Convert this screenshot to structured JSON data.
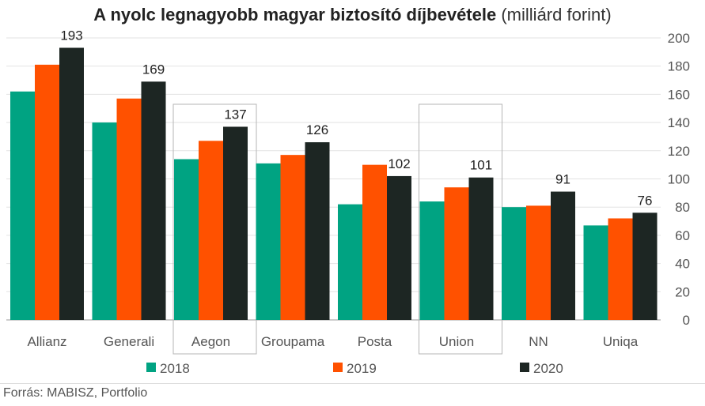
{
  "title_bold": "A nyolc legnagyobb magyar biztosító díjbevétele",
  "title_unit": "(milliárd forint)",
  "source": "Forrás:  MABISZ, Portfolio",
  "colors": {
    "2018": "#00a382",
    "2019": "#ff5100",
    "2020": "#1d2623"
  },
  "chart_data": {
    "type": "bar",
    "categories": [
      "Allianz",
      "Generali",
      "Aegon",
      "Groupama",
      "Posta",
      "Union",
      "NN",
      "Uniqa"
    ],
    "highlighted": [
      "Aegon",
      "Union"
    ],
    "series": [
      {
        "name": "2018",
        "values": [
          162,
          140,
          114,
          111,
          82,
          84,
          80,
          67
        ]
      },
      {
        "name": "2019",
        "values": [
          181,
          157,
          127,
          117,
          110,
          94,
          81,
          72
        ]
      },
      {
        "name": "2020",
        "values": [
          193,
          169,
          137,
          126,
          102,
          101,
          91,
          76
        ]
      }
    ],
    "data_labels": [
      "193",
      "169",
      "137",
      "126",
      "102",
      "101",
      "91",
      "76"
    ],
    "yticks": [
      "0",
      "20",
      "40",
      "60",
      "80",
      "100",
      "120",
      "140",
      "160",
      "180",
      "200"
    ],
    "ylim": [
      0,
      200
    ],
    "y_axis_side": "right",
    "grid": true,
    "legend": "bottom"
  }
}
